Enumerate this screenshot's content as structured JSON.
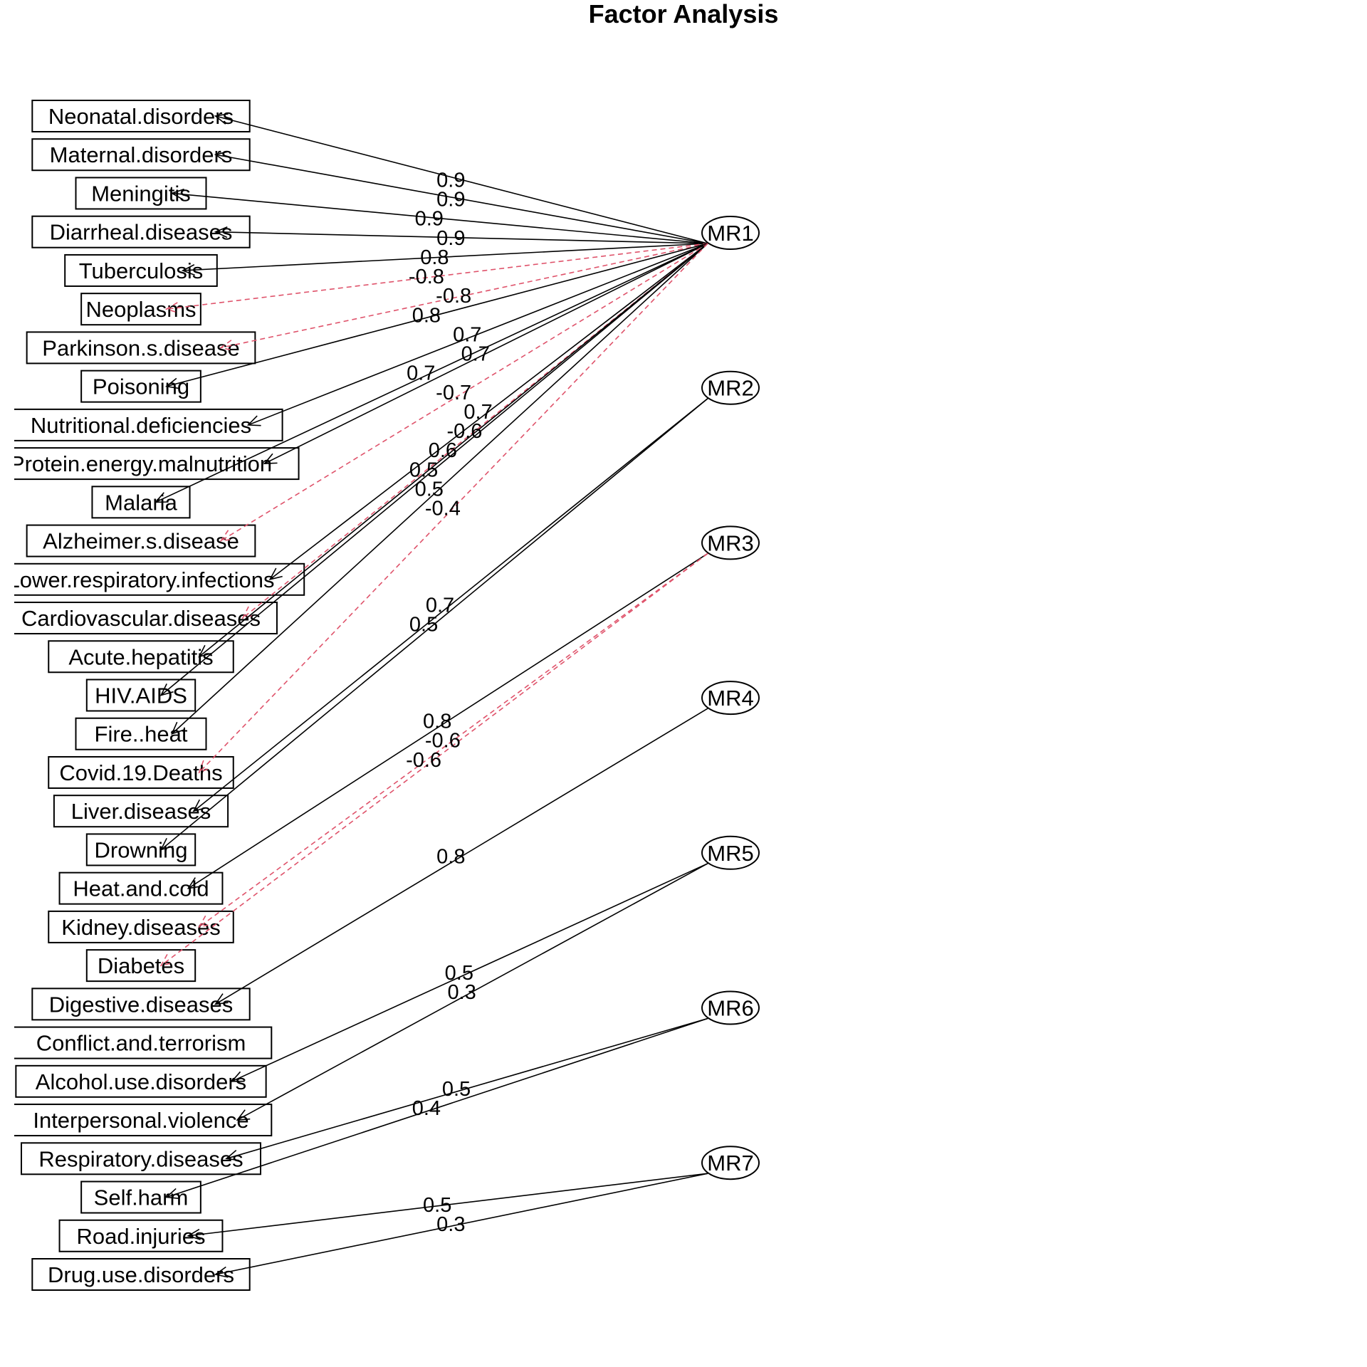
{
  "title": "Factor Analysis",
  "colors": {
    "positive": "#000000",
    "negative": "#DF536B"
  },
  "factors": [
    "MR1",
    "MR2",
    "MR3",
    "MR4",
    "MR5",
    "MR6",
    "MR7"
  ],
  "variables": [
    "Neonatal.disorders",
    "Maternal.disorders",
    "Meningitis",
    "Diarrheal.diseases",
    "Tuberculosis",
    "Neoplasms",
    "Parkinson.s.disease",
    "Poisoning",
    "Nutritional.deficiencies",
    "Protein.energy.malnutrition",
    "Malaria",
    "Alzheimer.s.disease",
    "Lower.respiratory.infections",
    "Cardiovascular.diseases",
    "Acute.hepatitis",
    "HIV.AIDS",
    "Fire..heat",
    "Covid.19.Deaths",
    "Liver.diseases",
    "Drowning",
    "Heat.and.cold",
    "Kidney.diseases",
    "Diabetes",
    "Digestive.diseases",
    "Conflict.and.terrorism",
    "Alcohol.use.disorders",
    "Interpersonal.violence",
    "Respiratory.diseases",
    "Self.harm",
    "Road.injuries",
    "Drug.use.disorders"
  ],
  "loadings": [
    {
      "factor": "MR1",
      "variable": "Neonatal.disorders",
      "label": "0.9",
      "value": 0.9
    },
    {
      "factor": "MR1",
      "variable": "Maternal.disorders",
      "label": "0.9",
      "value": 0.9
    },
    {
      "factor": "MR1",
      "variable": "Meningitis",
      "label": "0.9",
      "value": 0.9
    },
    {
      "factor": "MR1",
      "variable": "Diarrheal.diseases",
      "label": "0.9",
      "value": 0.9
    },
    {
      "factor": "MR1",
      "variable": "Tuberculosis",
      "label": "0.8",
      "value": 0.8
    },
    {
      "factor": "MR1",
      "variable": "Neoplasms",
      "label": "-0.8",
      "value": -0.8
    },
    {
      "factor": "MR1",
      "variable": "Parkinson.s.disease",
      "label": "-0.8",
      "value": -0.8
    },
    {
      "factor": "MR1",
      "variable": "Poisoning",
      "label": "0.8",
      "value": 0.8
    },
    {
      "factor": "MR1",
      "variable": "Nutritional.deficiencies",
      "label": "0.7",
      "value": 0.7
    },
    {
      "factor": "MR1",
      "variable": "Protein.energy.malnutrition",
      "label": "0.7",
      "value": 0.7
    },
    {
      "factor": "MR1",
      "variable": "Malaria",
      "label": "0.7",
      "value": 0.7
    },
    {
      "factor": "MR1",
      "variable": "Alzheimer.s.disease",
      "label": "-0.7",
      "value": -0.7
    },
    {
      "factor": "MR1",
      "variable": "Lower.respiratory.infections",
      "label": "0.7",
      "value": 0.7
    },
    {
      "factor": "MR1",
      "variable": "Cardiovascular.diseases",
      "label": "-0.6",
      "value": -0.6
    },
    {
      "factor": "MR1",
      "variable": "Acute.hepatitis",
      "label": "0.6",
      "value": 0.6
    },
    {
      "factor": "MR1",
      "variable": "HIV.AIDS",
      "label": "0.5",
      "value": 0.5
    },
    {
      "factor": "MR1",
      "variable": "Fire..heat",
      "label": "0.5",
      "value": 0.5
    },
    {
      "factor": "MR1",
      "variable": "Covid.19.Deaths",
      "label": "-0.4",
      "value": -0.4
    },
    {
      "factor": "MR2",
      "variable": "Liver.diseases",
      "label": "0.7",
      "value": 0.7
    },
    {
      "factor": "MR2",
      "variable": "Drowning",
      "label": "0.5",
      "value": 0.5
    },
    {
      "factor": "MR3",
      "variable": "Heat.and.cold",
      "label": "0.8",
      "value": 0.8
    },
    {
      "factor": "MR3",
      "variable": "Kidney.diseases",
      "label": "-0.6",
      "value": -0.6
    },
    {
      "factor": "MR3",
      "variable": "Diabetes",
      "label": "-0.6",
      "value": -0.6
    },
    {
      "factor": "MR4",
      "variable": "Digestive.diseases",
      "label": "0.8",
      "value": 0.8
    },
    {
      "factor": "MR5",
      "variable": "Alcohol.use.disorders",
      "label": "0.5",
      "value": 0.5
    },
    {
      "factor": "MR5",
      "variable": "Interpersonal.violence",
      "label": "0.3",
      "value": 0.3
    },
    {
      "factor": "MR6",
      "variable": "Respiratory.diseases",
      "label": "0.5",
      "value": 0.5
    },
    {
      "factor": "MR6",
      "variable": "Self.harm",
      "label": "0.4",
      "value": 0.4
    },
    {
      "factor": "MR7",
      "variable": "Road.injuries",
      "label": "0.5",
      "value": 0.5
    },
    {
      "factor": "MR7",
      "variable": "Drug.use.disorders",
      "label": "0.3",
      "value": 0.3
    }
  ]
}
